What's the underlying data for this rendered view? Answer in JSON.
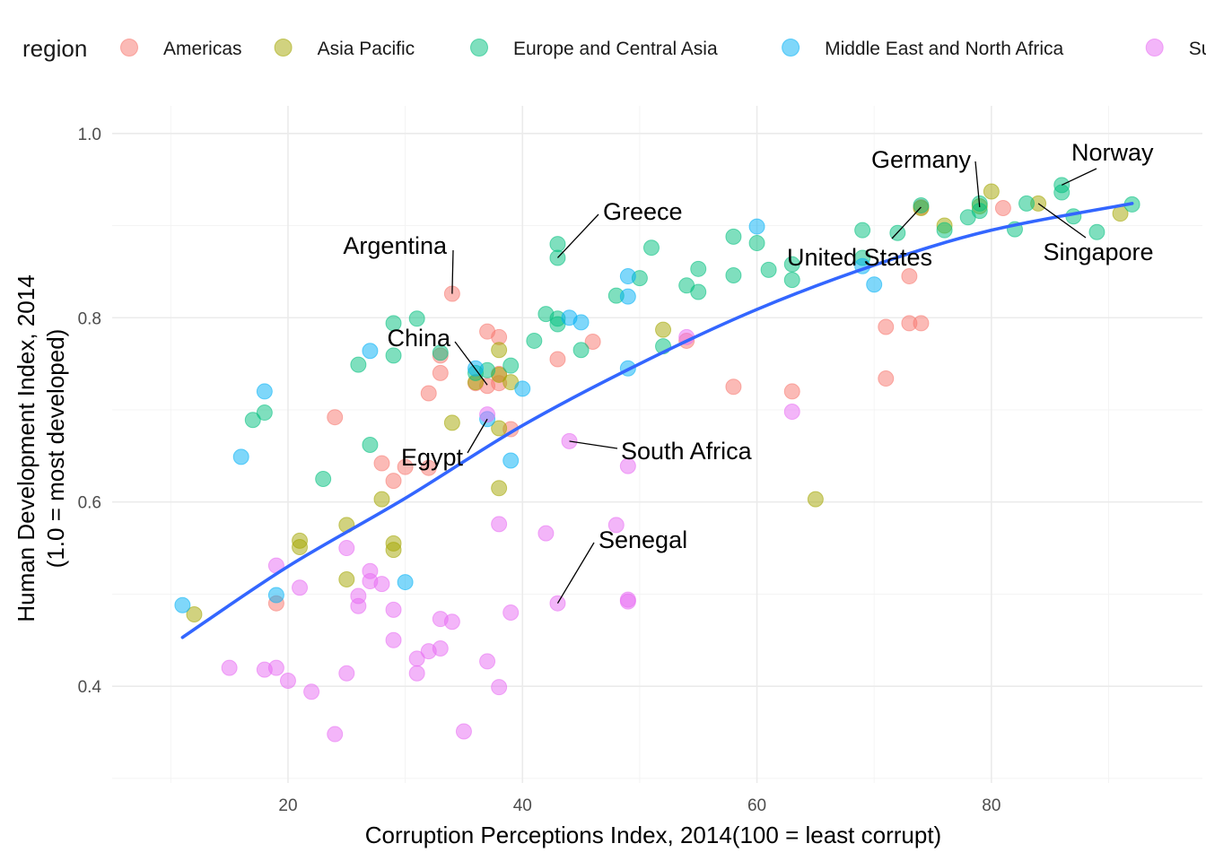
{
  "chart_data": {
    "type": "scatter",
    "xlabel": "Corruption Perceptions Index, 2014(100 = least corrupt)",
    "ylabel": "Human Development Index, 2014",
    "ylabel2": "(1.0 = most developed)",
    "xlim": [
      5,
      98
    ],
    "ylim": [
      0.295,
      1.03
    ],
    "x_ticks": [
      20,
      40,
      60,
      80
    ],
    "y_ticks": [
      0.4,
      0.6,
      0.8,
      1.0
    ],
    "x_tick_labels": [
      "20",
      "40",
      "60",
      "80"
    ],
    "y_tick_labels": [
      "0.4",
      "0.6",
      "0.8",
      "1.0"
    ],
    "grid": true,
    "legend": {
      "title": "region",
      "position": "top",
      "items": [
        {
          "label": "Americas",
          "color": "#F8766D"
        },
        {
          "label": "Asia Pacific",
          "color": "#A3A500"
        },
        {
          "label": "Europe and Central Asia",
          "color": "#00BF7D"
        },
        {
          "label": "Middle East and North Africa",
          "color": "#00B0F6"
        },
        {
          "label": "Sub Saharan Africa",
          "color": "#E76BF3"
        }
      ]
    },
    "series": [
      {
        "name": "Americas",
        "color": "#F8766D",
        "points": [
          [
            19,
            0.49
          ],
          [
            24,
            0.692
          ],
          [
            28,
            0.642
          ],
          [
            29,
            0.623
          ],
          [
            30,
            0.638
          ],
          [
            32,
            0.718
          ],
          [
            32,
            0.637
          ],
          [
            33,
            0.74
          ],
          [
            33,
            0.759
          ],
          [
            34,
            0.826
          ],
          [
            36,
            0.729
          ],
          [
            37,
            0.785
          ],
          [
            37,
            0.726
          ],
          [
            38,
            0.779
          ],
          [
            38,
            0.739
          ],
          [
            38,
            0.729
          ],
          [
            39,
            0.679
          ],
          [
            43,
            0.755
          ],
          [
            46,
            0.774
          ],
          [
            54,
            0.775
          ],
          [
            58,
            0.725
          ],
          [
            63,
            0.72
          ],
          [
            71,
            0.79
          ],
          [
            71,
            0.734
          ],
          [
            73,
            0.794
          ],
          [
            73,
            0.845
          ],
          [
            74,
            0.794
          ],
          [
            74,
            0.92
          ],
          [
            81,
            0.919
          ]
        ]
      },
      {
        "name": "Asia Pacific",
        "color": "#A3A500",
        "points": [
          [
            12,
            0.478
          ],
          [
            21,
            0.558
          ],
          [
            21,
            0.551
          ],
          [
            25,
            0.575
          ],
          [
            25,
            0.516
          ],
          [
            28,
            0.603
          ],
          [
            29,
            0.555
          ],
          [
            29,
            0.548
          ],
          [
            34,
            0.686
          ],
          [
            36,
            0.73
          ],
          [
            38,
            0.765
          ],
          [
            38,
            0.738
          ],
          [
            38,
            0.68
          ],
          [
            38,
            0.615
          ],
          [
            39,
            0.73
          ],
          [
            52,
            0.787
          ],
          [
            65,
            0.603
          ],
          [
            74,
            0.919
          ],
          [
            76,
            0.9
          ],
          [
            79,
            0.921
          ],
          [
            80,
            0.937
          ],
          [
            84,
            0.924
          ],
          [
            91,
            0.913
          ]
        ]
      },
      {
        "name": "Europe and Central Asia",
        "color": "#00BF7D",
        "points": [
          [
            17,
            0.689
          ],
          [
            18,
            0.697
          ],
          [
            23,
            0.625
          ],
          [
            26,
            0.749
          ],
          [
            27,
            0.662
          ],
          [
            29,
            0.794
          ],
          [
            29,
            0.759
          ],
          [
            31,
            0.799
          ],
          [
            33,
            0.762
          ],
          [
            36,
            0.74
          ],
          [
            37,
            0.743
          ],
          [
            39,
            0.748
          ],
          [
            41,
            0.775
          ],
          [
            42,
            0.804
          ],
          [
            43,
            0.88
          ],
          [
            43,
            0.865
          ],
          [
            43,
            0.799
          ],
          [
            43,
            0.793
          ],
          [
            45,
            0.765
          ],
          [
            48,
            0.824
          ],
          [
            50,
            0.843
          ],
          [
            51,
            0.876
          ],
          [
            52,
            0.769
          ],
          [
            54,
            0.835
          ],
          [
            55,
            0.853
          ],
          [
            55,
            0.828
          ],
          [
            58,
            0.888
          ],
          [
            58,
            0.846
          ],
          [
            60,
            0.881
          ],
          [
            61,
            0.852
          ],
          [
            63,
            0.858
          ],
          [
            63,
            0.841
          ],
          [
            69,
            0.895
          ],
          [
            69,
            0.865
          ],
          [
            72,
            0.892
          ],
          [
            74,
            0.922
          ],
          [
            76,
            0.895
          ],
          [
            78,
            0.909
          ],
          [
            79,
            0.916
          ],
          [
            79,
            0.924
          ],
          [
            82,
            0.896
          ],
          [
            83,
            0.924
          ],
          [
            86,
            0.944
          ],
          [
            86,
            0.936
          ],
          [
            87,
            0.91
          ],
          [
            89,
            0.893
          ],
          [
            92,
            0.923
          ]
        ]
      },
      {
        "name": "Middle East and North Africa",
        "color": "#00B0F6",
        "points": [
          [
            11,
            0.488
          ],
          [
            16,
            0.649
          ],
          [
            18,
            0.72
          ],
          [
            19,
            0.499
          ],
          [
            27,
            0.764
          ],
          [
            30,
            0.513
          ],
          [
            36,
            0.745
          ],
          [
            37,
            0.69
          ],
          [
            39,
            0.645
          ],
          [
            40,
            0.723
          ],
          [
            44,
            0.8
          ],
          [
            45,
            0.795
          ],
          [
            49,
            0.845
          ],
          [
            49,
            0.823
          ],
          [
            49,
            0.745
          ],
          [
            60,
            0.899
          ],
          [
            69,
            0.856
          ],
          [
            70,
            0.836
          ]
        ]
      },
      {
        "name": "Sub Saharan Africa",
        "color": "#E76BF3",
        "points": [
          [
            15,
            0.42
          ],
          [
            18,
            0.418
          ],
          [
            19,
            0.42
          ],
          [
            19,
            0.531
          ],
          [
            20,
            0.406
          ],
          [
            21,
            0.507
          ],
          [
            22,
            0.394
          ],
          [
            24,
            0.348
          ],
          [
            25,
            0.414
          ],
          [
            25,
            0.55
          ],
          [
            26,
            0.487
          ],
          [
            26,
            0.498
          ],
          [
            27,
            0.525
          ],
          [
            27,
            0.514
          ],
          [
            28,
            0.511
          ],
          [
            29,
            0.483
          ],
          [
            29,
            0.45
          ],
          [
            31,
            0.43
          ],
          [
            31,
            0.414
          ],
          [
            32,
            0.438
          ],
          [
            33,
            0.473
          ],
          [
            33,
            0.441
          ],
          [
            34,
            0.47
          ],
          [
            35,
            0.351
          ],
          [
            37,
            0.427
          ],
          [
            37,
            0.695
          ],
          [
            38,
            0.399
          ],
          [
            38,
            0.576
          ],
          [
            39,
            0.48
          ],
          [
            42,
            0.566
          ],
          [
            43,
            0.49
          ],
          [
            44,
            0.666
          ],
          [
            48,
            0.575
          ],
          [
            49,
            0.639
          ],
          [
            49,
            0.494
          ],
          [
            49,
            0.492
          ],
          [
            54,
            0.779
          ],
          [
            63,
            0.698
          ]
        ]
      }
    ],
    "trend_line": {
      "color": "#3366FF",
      "points": [
        [
          11,
          0.453
        ],
        [
          20,
          0.53
        ],
        [
          30,
          0.604
        ],
        [
          40,
          0.683
        ],
        [
          50,
          0.75
        ],
        [
          60,
          0.809
        ],
        [
          70,
          0.857
        ],
        [
          80,
          0.895
        ],
        [
          92,
          0.924
        ]
      ]
    },
    "annotations": [
      {
        "text": "Greece",
        "x": 43,
        "y": 0.865,
        "anchor": "start"
      },
      {
        "text": "Argentina",
        "x": 34,
        "y": 0.826,
        "anchor": "end"
      },
      {
        "text": "China",
        "x": 37,
        "y": 0.727,
        "anchor": "end"
      },
      {
        "text": "Egypt",
        "x": 37,
        "y": 0.69,
        "anchor": "end"
      },
      {
        "text": "South Africa",
        "x": 44,
        "y": 0.666,
        "anchor": "start"
      },
      {
        "text": "Senegal",
        "x": 43,
        "y": 0.49,
        "anchor": "start"
      },
      {
        "text": "Germany",
        "x": 79,
        "y": 0.92,
        "anchor": "end"
      },
      {
        "text": "Norway",
        "x": 86,
        "y": 0.944,
        "anchor": "start"
      },
      {
        "text": "United States",
        "x": 74,
        "y": 0.92,
        "anchor": "middle"
      },
      {
        "text": "Singapore",
        "x": 84,
        "y": 0.924,
        "anchor": "middle"
      }
    ]
  }
}
